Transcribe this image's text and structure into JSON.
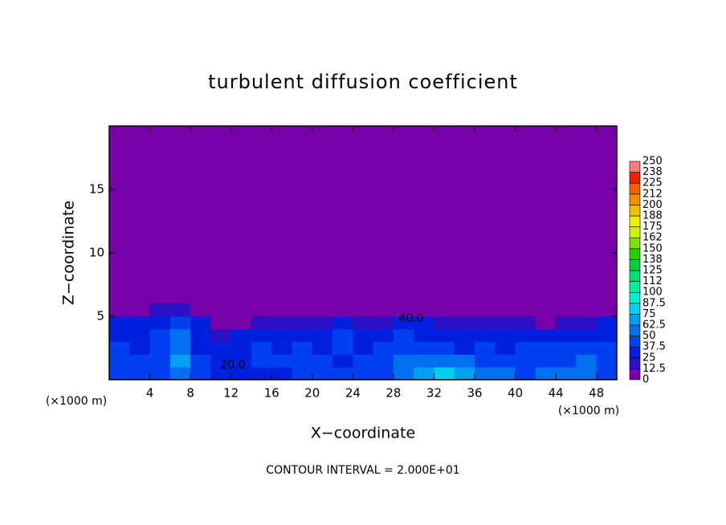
{
  "chart_data": {
    "type": "heatmap",
    "title": "turbulent diffusion coefficient",
    "x_label": "X−coordinate",
    "y_label": "Z−coordinate",
    "x_unit": "(×1000 m)",
    "y_unit": "(×1000 m)",
    "footnote": "CONTOUR INTERVAL = 2.000E+01",
    "xlim": [
      0,
      50
    ],
    "ylim": [
      0,
      20
    ],
    "xticks": [
      4,
      8,
      12,
      16,
      20,
      24,
      28,
      32,
      36,
      40,
      44,
      48
    ],
    "yticks": [
      5,
      10,
      15
    ],
    "xbins": [
      0,
      2,
      4,
      6,
      8,
      10,
      12,
      14,
      16,
      18,
      20,
      22,
      24,
      26,
      28,
      30,
      32,
      34,
      36,
      38,
      40,
      42,
      44,
      46,
      48,
      50
    ],
    "zbins": [
      0,
      1,
      2,
      3,
      4,
      5,
      6
    ],
    "z": [
      [
        40,
        40,
        45,
        60,
        40,
        35,
        30,
        30,
        35,
        40,
        40,
        40,
        40,
        45,
        60,
        70,
        75,
        70,
        60,
        50,
        45,
        50,
        55,
        60,
        45
      ],
      [
        45,
        40,
        45,
        70,
        40,
        35,
        35,
        40,
        40,
        45,
        40,
        35,
        40,
        45,
        50,
        55,
        50,
        50,
        45,
        40,
        40,
        45,
        45,
        50,
        45
      ],
      [
        40,
        35,
        40,
        60,
        35,
        30,
        30,
        40,
        35,
        40,
        35,
        40,
        30,
        40,
        45,
        40,
        40,
        35,
        40,
        35,
        40,
        40,
        45,
        45,
        40
      ],
      [
        35,
        35,
        40,
        50,
        30,
        20,
        35,
        30,
        30,
        35,
        30,
        40,
        30,
        35,
        40,
        35,
        30,
        35,
        30,
        30,
        35,
        30,
        35,
        30,
        35
      ],
      [
        30,
        25,
        30,
        40,
        25,
        10,
        10,
        20,
        15,
        20,
        15,
        25,
        20,
        20,
        30,
        25,
        20,
        20,
        15,
        20,
        20,
        10,
        20,
        20,
        30
      ],
      [
        5,
        10,
        20,
        15,
        5,
        5,
        5,
        5,
        5,
        5,
        5,
        5,
        5,
        5,
        5,
        5,
        5,
        5,
        5,
        5,
        5,
        5,
        5,
        5,
        5
      ]
    ],
    "contour_labels": [
      {
        "value": 40,
        "label": "40.0"
      },
      {
        "value": 20,
        "label": "20.0"
      }
    ],
    "colorbar": {
      "ticks": [
        0,
        12.5,
        25,
        37.5,
        50,
        62.5,
        75,
        87.5,
        100,
        {
          "value": 112.5,
          "label": "112"
        },
        125,
        {
          "value": 137.5,
          "label": "138"
        },
        150,
        {
          "value": 162.5,
          "label": "162"
        },
        175,
        {
          "value": 187.5,
          "label": "188"
        },
        200,
        {
          "value": 212.5,
          "label": "212"
        },
        225,
        {
          "value": 237.5,
          "label": "238"
        },
        250
      ],
      "colors": [
        "#7800a8",
        "#2c10c4",
        "#0020e0",
        "#0040f0",
        "#0070f0",
        "#00a0f0",
        "#00d0f0",
        "#00f0d0",
        "#00f0a0",
        "#00e070",
        "#00d040",
        "#20d000",
        "#80e000",
        "#d0f000",
        "#f0f000",
        "#f0c000",
        "#f09000",
        "#f06000",
        "#f02000",
        "#f08080"
      ]
    }
  }
}
